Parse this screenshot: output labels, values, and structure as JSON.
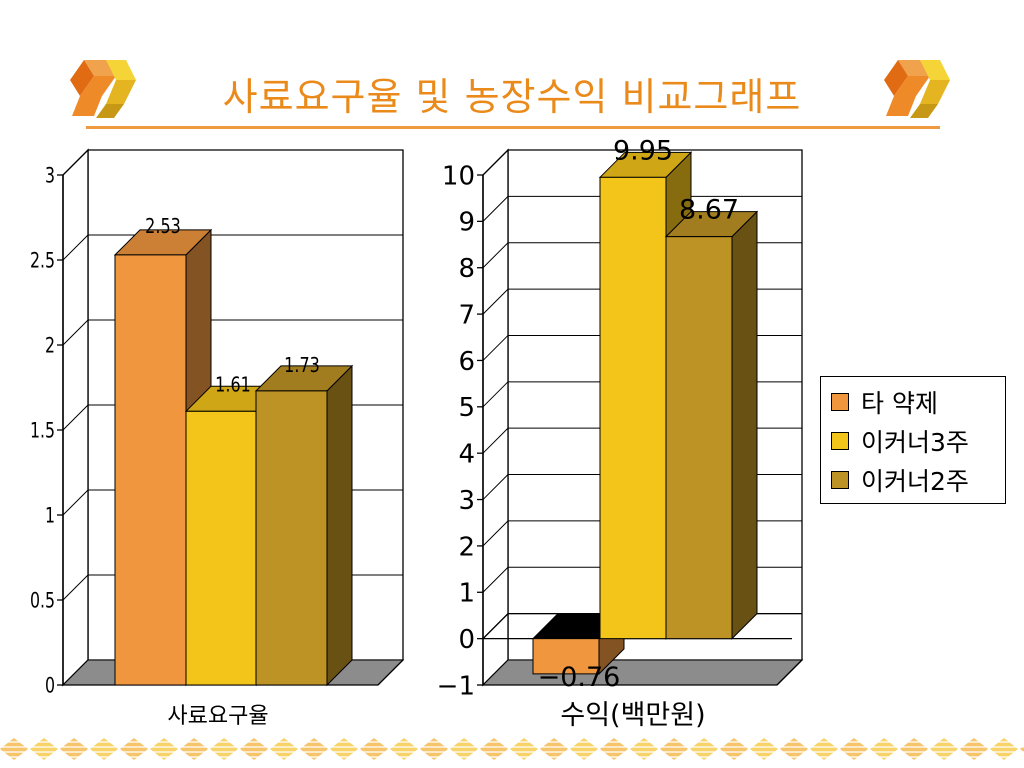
{
  "title": "사료요구율 및 농장수익 비교그래프",
  "colors": {
    "title": "#ea8a1a",
    "series": [
      "#ef963f",
      "#f3c51a",
      "#be9325"
    ],
    "accent": "#ee9a40"
  },
  "legend": {
    "position": "right",
    "items": [
      "타  약제",
      "이커너3주",
      "이커너2주"
    ]
  },
  "chart_data": [
    {
      "type": "bar",
      "style": "3d",
      "categories": [
        "사료요구율"
      ],
      "series": [
        {
          "name": "타  약제",
          "values": [
            2.53
          ]
        },
        {
          "name": "이커너3주",
          "values": [
            1.61
          ]
        },
        {
          "name": "이커너2주",
          "values": [
            1.73
          ]
        }
      ],
      "data_labels": [
        "2.53",
        "1.61",
        "1.73"
      ],
      "yticks": [
        "0",
        "0.5",
        "1",
        "1.5",
        "2",
        "2.5",
        "3"
      ],
      "ylim": [
        0,
        3
      ],
      "grid": true
    },
    {
      "type": "bar",
      "style": "3d",
      "categories": [
        "수익(백만원)"
      ],
      "series": [
        {
          "name": "타  약제",
          "values": [
            -0.76
          ]
        },
        {
          "name": "이커너3주",
          "values": [
            9.95
          ]
        },
        {
          "name": "이커너2주",
          "values": [
            8.67
          ]
        }
      ],
      "data_labels": [
        "−0.76",
        "9.95",
        "8.67"
      ],
      "yticks": [
        "−1",
        "0",
        "1",
        "2",
        "3",
        "4",
        "5",
        "6",
        "7",
        "8",
        "9",
        "10"
      ],
      "ylim": [
        -1,
        10
      ],
      "grid": true
    }
  ]
}
